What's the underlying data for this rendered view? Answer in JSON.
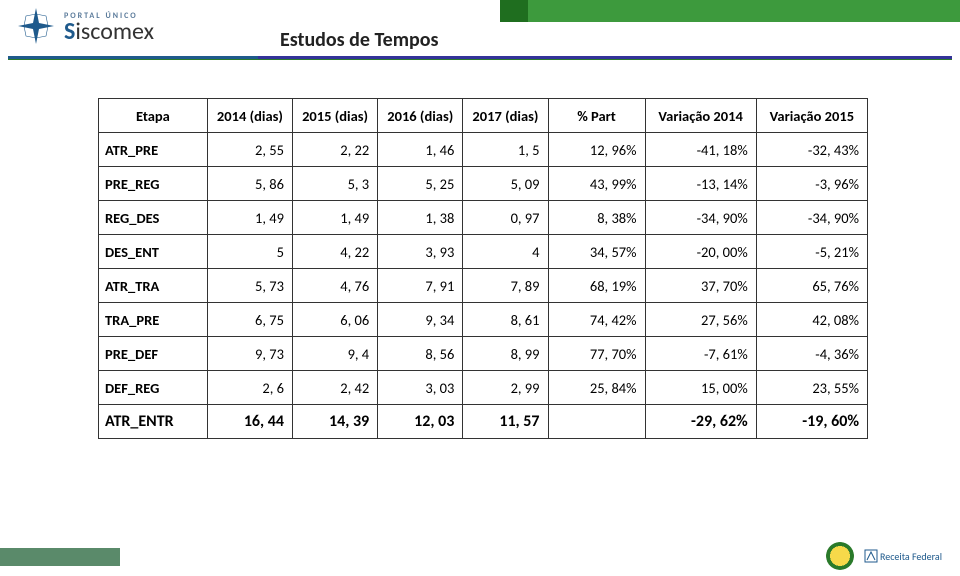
{
  "logo": {
    "top": "PORTAL ÚNICO",
    "main_s": "S",
    "main_rest": "iscomex"
  },
  "title": "Estudos de Tempos",
  "table": {
    "columns": [
      {
        "key": "etapa",
        "label": "Etapa"
      },
      {
        "key": "y2014",
        "label": "2014 (dias)"
      },
      {
        "key": "y2015",
        "label": "2015 (dias)"
      },
      {
        "key": "y2016",
        "label": "2016 (dias)"
      },
      {
        "key": "y2017",
        "label": "2017 (dias)"
      },
      {
        "key": "pct",
        "label": "% Part"
      },
      {
        "key": "v2014",
        "label": "Variação 2014"
      },
      {
        "key": "v2015",
        "label": "Variação 2015"
      }
    ],
    "rows": [
      {
        "etapa": "ATR_PRE",
        "y2014": "2, 55",
        "y2015": "2, 22",
        "y2016": "1, 46",
        "y2017": "1, 5",
        "pct": "12, 96%",
        "v2014": "-41, 18%",
        "v2015": "-32, 43%"
      },
      {
        "etapa": "PRE_REG",
        "y2014": "5, 86",
        "y2015": "5, 3",
        "y2016": "5, 25",
        "y2017": "5, 09",
        "pct": "43, 99%",
        "v2014": "-13, 14%",
        "v2015": "-3, 96%"
      },
      {
        "etapa": "REG_DES",
        "y2014": "1, 49",
        "y2015": "1, 49",
        "y2016": "1, 38",
        "y2017": "0, 97",
        "pct": "8, 38%",
        "v2014": "-34, 90%",
        "v2015": "-34, 90%"
      },
      {
        "etapa": "DES_ENT",
        "y2014": "5",
        "y2015": "4, 22",
        "y2016": "3, 93",
        "y2017": "4",
        "pct": "34, 57%",
        "v2014": "-20, 00%",
        "v2015": "-5, 21%"
      },
      {
        "etapa": "ATR_TRA",
        "y2014": "5, 73",
        "y2015": "4, 76",
        "y2016": "7, 91",
        "y2017": "7, 89",
        "pct": "68, 19%",
        "v2014": "37, 70%",
        "v2015": "65, 76%"
      },
      {
        "etapa": "TRA_PRE",
        "y2014": "6, 75",
        "y2015": "6, 06",
        "y2016": "9, 34",
        "y2017": "8, 61",
        "pct": "74, 42%",
        "v2014": "27, 56%",
        "v2015": "42, 08%"
      },
      {
        "etapa": "PRE_DEF",
        "y2014": "9, 73",
        "y2015": "9, 4",
        "y2016": "8, 56",
        "y2017": "8, 99",
        "pct": "77, 70%",
        "v2014": "-7, 61%",
        "v2015": "-4, 36%"
      },
      {
        "etapa": "DEF_REG",
        "y2014": "2, 6",
        "y2015": "2, 42",
        "y2016": "3, 03",
        "y2017": "2, 99",
        "pct": "25, 84%",
        "v2014": "15, 00%",
        "v2015": "23, 55%"
      }
    ],
    "total": {
      "etapa": "ATR_ENTR",
      "y2014": "16, 44",
      "y2015": "14, 39",
      "y2016": "12, 03",
      "y2017": "11, 57",
      "pct": "",
      "v2014": "-29, 62%",
      "v2015": "-19, 60%"
    }
  },
  "footer": {
    "agency": "Receita Federal"
  },
  "colors": {
    "header_green": "#3d9a3d",
    "header_dark_green": "#1f6e1f",
    "underline_blue": "#1f5a8c",
    "border": "#333333",
    "text": "#222222"
  }
}
